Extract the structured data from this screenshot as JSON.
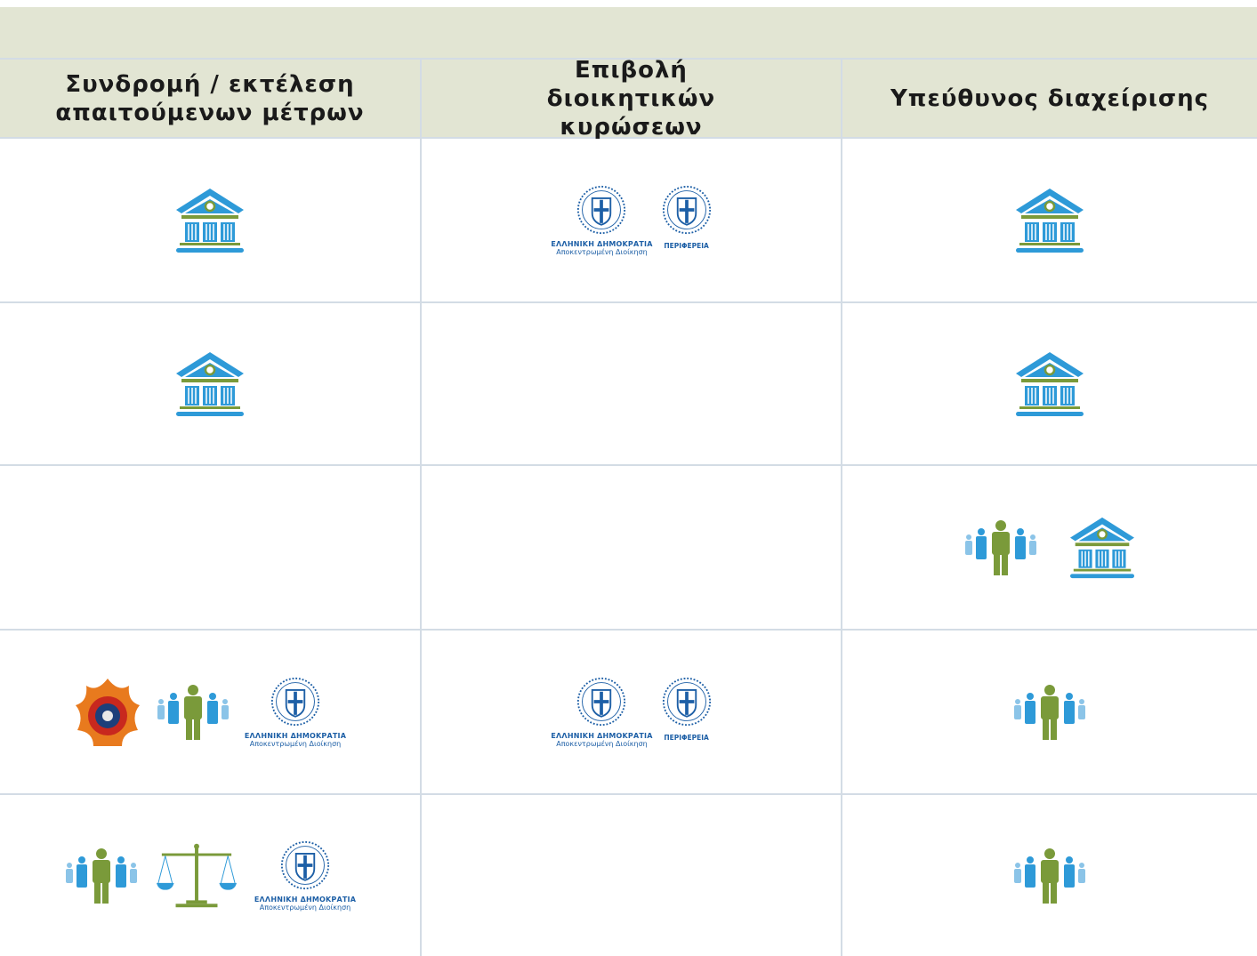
{
  "table": {
    "headers": [
      "Συνδρομή / εκτέλεση απαιτούμενων μέτρων",
      "Επιβολή διοικητικών κυρώσεων",
      "Υπεύθυνος διαχείρισης"
    ],
    "captions": [
      {
        "title": "ΕΛΛΗΝΙΚΗ ΔΗΜΟΚΡΑΤΙΑ",
        "subtitle": "Αποκεντρωμένη Διοίκηση",
        "region": "ΠΕΡΙΦΕΡΕΙΑ"
      },
      {
        "title": "ΕΛΛΗΝΙΚΗ ΔΗΜΟΚΡΑΤΙΑ",
        "subtitle": "Αποκεντρωμένη Διοίκηση"
      },
      {
        "title": "ΕΛΛΗΝΙΚΗ ΔΗΜΟΚΡΑΤΙΑ",
        "subtitle": "Αποκεντρωμένη Διοίκηση",
        "region": "ΠΕΡΙΦΕΡΕΙΑ"
      },
      {
        "title": "ΕΛΛΗΝΙΚΗ ΔΗΜΟΚΡΑΤΙΑ",
        "subtitle": "Αποκεντρωμένη Διοίκηση"
      }
    ]
  }
}
